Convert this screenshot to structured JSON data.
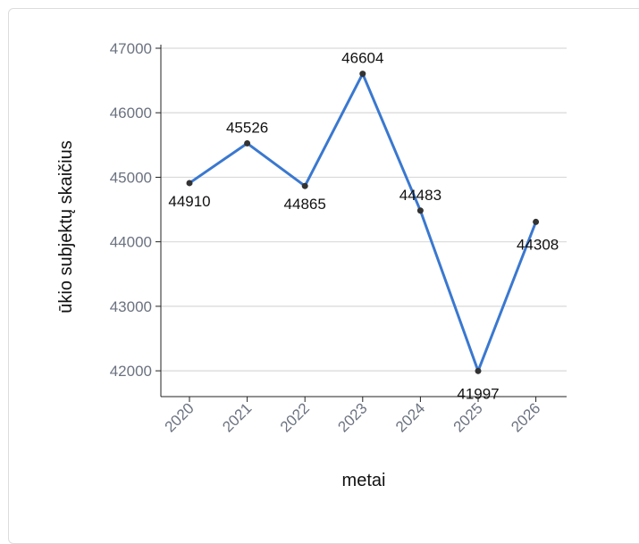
{
  "chart_data": {
    "type": "line",
    "title": "",
    "xlabel": "metai",
    "ylabel": "ūkio subjektų skaičius",
    "categories": [
      "2020",
      "2021",
      "2022",
      "2023",
      "2024",
      "2025",
      "2026"
    ],
    "values": [
      44910,
      45526,
      44865,
      46604,
      44483,
      41997,
      44308
    ],
    "data_labels": [
      "44910",
      "45526",
      "44865",
      "46604",
      "44483",
      "41997",
      "44308"
    ],
    "ylim": [
      41600,
      47000
    ],
    "yticks": [
      "42000",
      "43000",
      "44000",
      "45000",
      "46000",
      "47000"
    ],
    "grid": true,
    "colors": {
      "line": "#3a78d0",
      "point": "#333333",
      "grid": "#d9d9d9"
    }
  }
}
